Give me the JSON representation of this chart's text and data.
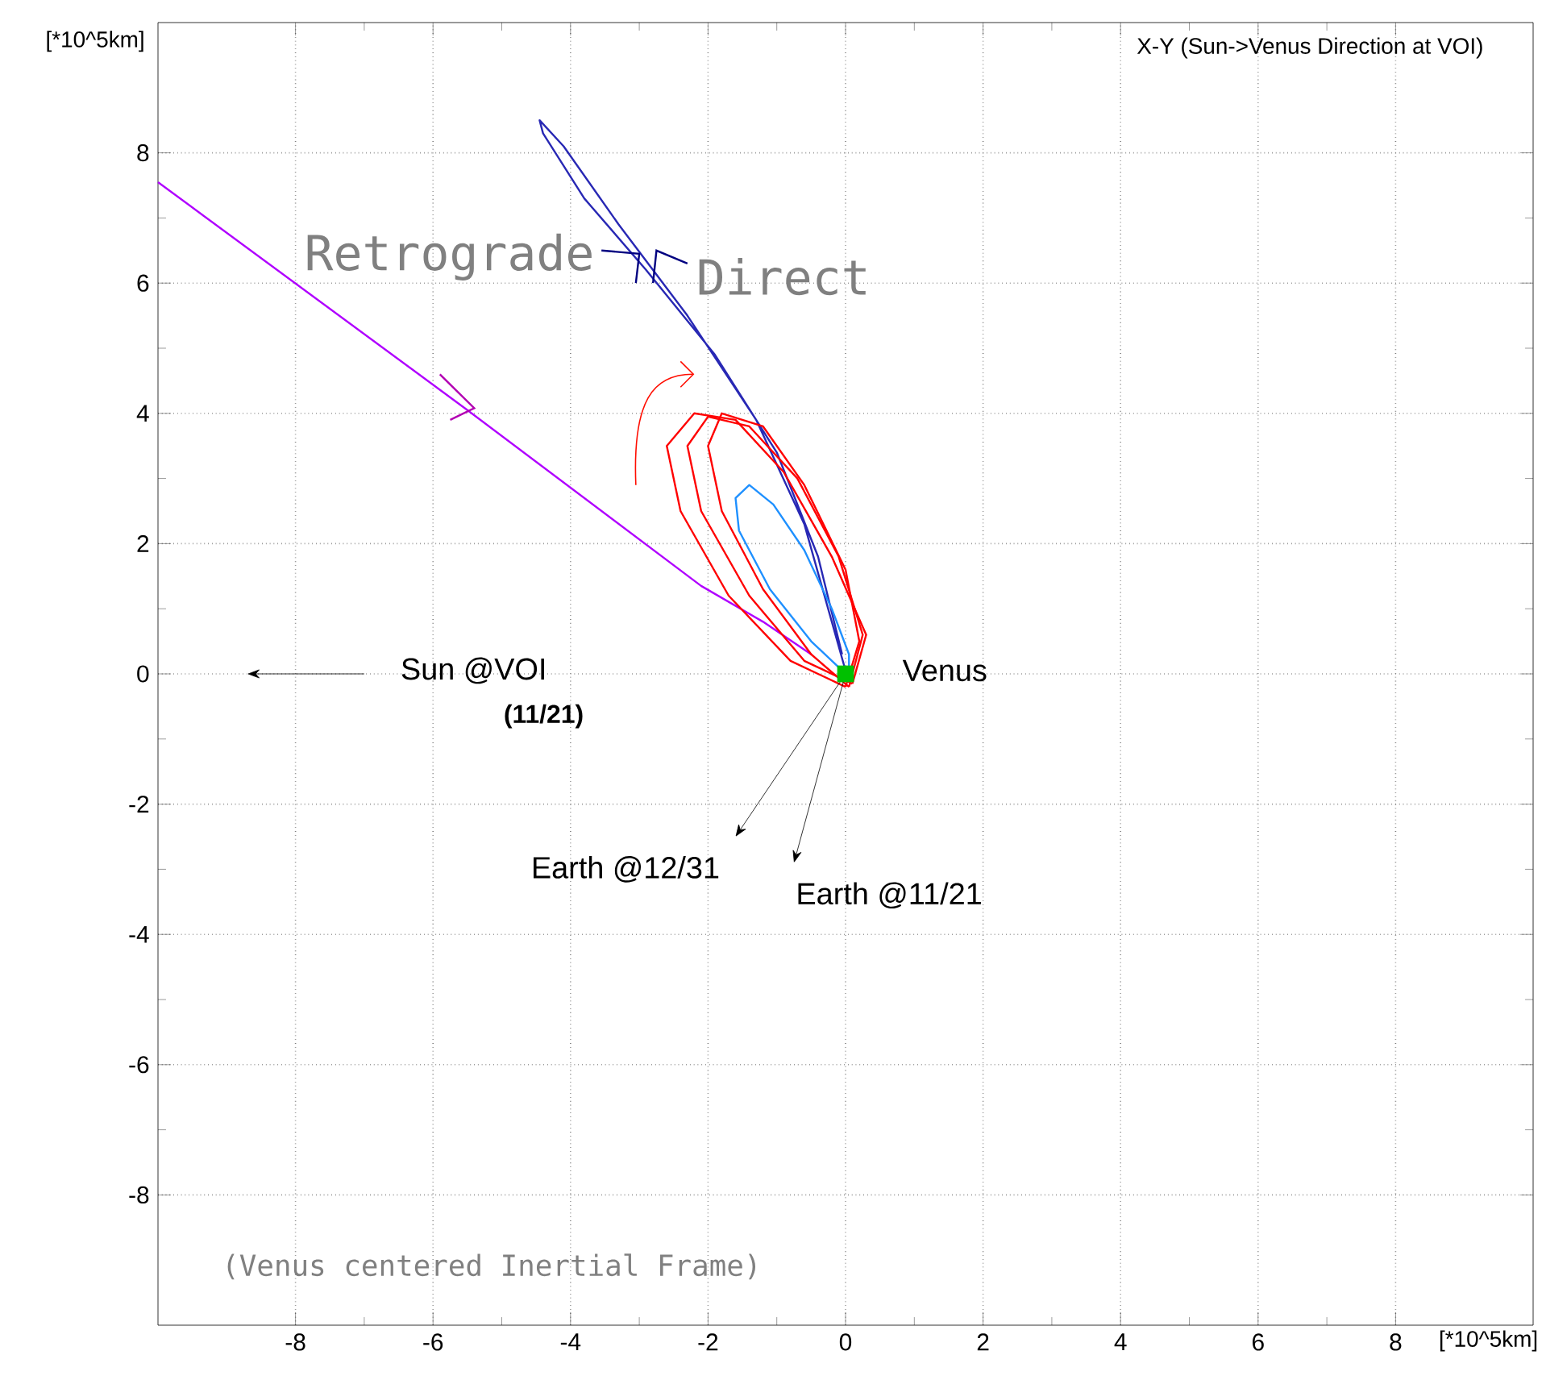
{
  "chart_data": {
    "type": "line",
    "title": "X-Y (Sun->Venus Direction at VOI)",
    "xlabel": "[*10^5km]",
    "ylabel": "[*10^5km]",
    "xlim": [
      -10,
      10
    ],
    "ylim": [
      -10,
      10
    ],
    "xticks": [
      -8,
      -6,
      -4,
      -2,
      0,
      2,
      4,
      6,
      8
    ],
    "yticks": [
      -8,
      -6,
      -4,
      -2,
      0,
      2,
      4,
      6,
      8
    ],
    "grid": true,
    "marker": "none",
    "line_style": "solid",
    "series": [
      {
        "color": "#b000ff",
        "x": [
          -10,
          -5.5,
          -2.1,
          -1.2,
          -0.5
        ],
        "values": [
          7.55,
          4.05,
          1.35,
          0.8,
          0.3
        ]
      },
      {
        "color": "#2828b4",
        "x": [
          0,
          -0.6,
          -1.3,
          -2.3,
          -3.3,
          -4.1,
          -4.45,
          -4.4,
          -3.8,
          -2.9,
          -1.9,
          -1.0,
          -0.4,
          -0.05
        ],
        "values": [
          0.05,
          2.3,
          3.9,
          5.5,
          6.9,
          8.1,
          8.5,
          8.3,
          7.3,
          6.2,
          4.9,
          3.4,
          1.8,
          0.3
        ]
      },
      {
        "color": "#ff0000",
        "x": [
          0,
          -0.8,
          -1.7,
          -2.4,
          -2.6,
          -2.2,
          -1.6,
          -0.9,
          -0.2,
          0.3,
          0.1
        ],
        "values": [
          -0.2,
          0.2,
          1.2,
          2.5,
          3.5,
          4.0,
          3.9,
          3.1,
          1.8,
          0.6,
          -0.15
        ]
      },
      {
        "color": "#ff0000",
        "x": [
          0.1,
          -0.6,
          -1.4,
          -2.1,
          -2.3,
          -2.0,
          -1.4,
          -0.7,
          -0.1,
          0.25,
          0.05
        ],
        "values": [
          -0.15,
          0.2,
          1.2,
          2.5,
          3.5,
          3.95,
          3.8,
          3.0,
          1.8,
          0.6,
          -0.2
        ]
      },
      {
        "color": "#ff0000",
        "x": [
          0.05,
          -0.5,
          -1.2,
          -1.8,
          -2.0,
          -1.8,
          -1.2,
          -0.6,
          0,
          0.2,
          0
        ],
        "values": [
          -0.2,
          0.3,
          1.3,
          2.5,
          3.5,
          4.0,
          3.8,
          2.9,
          1.6,
          0.5,
          -0.2
        ]
      },
      {
        "color": "#1e90ff",
        "x": [
          0,
          -0.5,
          -1.1,
          -1.55,
          -1.6,
          -1.4,
          -1.05,
          -0.6,
          -0.2,
          0.05,
          0.05
        ],
        "values": [
          0,
          0.5,
          1.3,
          2.2,
          2.7,
          2.9,
          2.6,
          1.9,
          1.0,
          0.3,
          0.1
        ]
      },
      {
        "type": "scatter",
        "color": "#00c000",
        "marker": "square",
        "x": [
          0
        ],
        "values": [
          0
        ]
      }
    ],
    "annotations": [
      "Retrograde",
      "Direct",
      "Sun @VOI",
      "(11/21)",
      "Venus",
      {
        "text": "Earth @12/31",
        "x": 0,
        "y": 0
      },
      {
        "text": "Earth @11/21",
        "x": 0,
        "y": 0
      },
      "(Venus centered Inertial Frame)"
    ]
  }
}
